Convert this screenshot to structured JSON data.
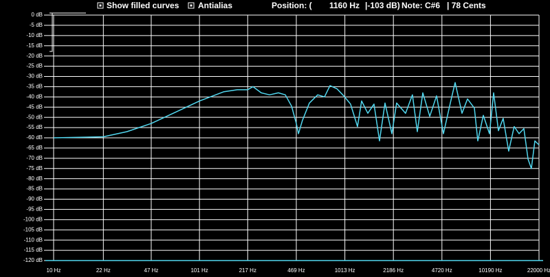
{
  "toolbar": {
    "filled_label": "Show filled curves",
    "antialias_label": "Antialias",
    "position_label": "Position: (",
    "position_hz": "1160 Hz",
    "position_db": "|-103 dB)",
    "note": "Note: C#6",
    "cents": "| 78 Cents"
  },
  "chart_data": {
    "type": "line",
    "xlog": true,
    "grid": true,
    "x": [
      10,
      22,
      32,
      47,
      69,
      101,
      148,
      184,
      217,
      236,
      269,
      307,
      353,
      394,
      435,
      469,
      485,
      517,
      577,
      658,
      733,
      800,
      892,
      995,
      1109,
      1237,
      1321,
      1458,
      1607,
      1754,
      1915,
      2134,
      2302,
      2652,
      2958,
      3195,
      3486,
      3890,
      4337,
      4834,
      5392,
      5821,
      6490,
      7080,
      7892,
      8337,
      9095,
      10035,
      10715,
      11560,
      12470,
      13610,
      14850,
      16030,
      17300,
      18490,
      19500,
      20600,
      22000
    ],
    "series": [
      {
        "color": "#52d8f0",
        "values": [
          -60,
          -59.5,
          -57,
          -53,
          -47.5,
          -42,
          -37.5,
          -36.5,
          -36.5,
          -35,
          -38,
          -39,
          -38,
          -39,
          -44.5,
          -53,
          -58,
          -51.5,
          -43,
          -39,
          -40,
          -34.5,
          -36,
          -39.5,
          -43.5,
          -54.5,
          -42,
          -48,
          -43.5,
          -61.5,
          -43,
          -58,
          -43,
          -48,
          -39,
          -57,
          -38,
          -49.5,
          -39.5,
          -58,
          -43,
          -33,
          -48,
          -41,
          -45.5,
          -61.5,
          -49,
          -58,
          -38,
          -56.5,
          -50.5,
          -66.5,
          -54.5,
          -58,
          -55.5,
          -70.5,
          -75,
          -61.5,
          -63.5
        ]
      }
    ],
    "xlim": [
      10,
      22000
    ],
    "xticks": [
      {
        "value": 10,
        "label": "10 Hz"
      },
      {
        "value": 22,
        "label": "22 Hz"
      },
      {
        "value": 47,
        "label": "47 Hz"
      },
      {
        "value": 101,
        "label": "101 Hz"
      },
      {
        "value": 217,
        "label": "217 Hz"
      },
      {
        "value": 469,
        "label": "469 Hz"
      },
      {
        "value": 1013,
        "label": "1013 Hz"
      },
      {
        "value": 2186,
        "label": "2186 Hz"
      },
      {
        "value": 4720,
        "label": "4720 Hz"
      },
      {
        "value": 10190,
        "label": "10190 Hz"
      },
      {
        "value": 22000,
        "label": "22000 Hz"
      }
    ],
    "ylim": [
      -120,
      0
    ],
    "yticks": [
      {
        "value": 0,
        "label": "0 dB"
      },
      {
        "value": -5,
        "label": "-5 dB"
      },
      {
        "value": -10,
        "label": "-10 dB"
      },
      {
        "value": -15,
        "label": "-15 dB"
      },
      {
        "value": -20,
        "label": "-20 dB"
      },
      {
        "value": -25,
        "label": "-25 dB"
      },
      {
        "value": -30,
        "label": "-30 dB"
      },
      {
        "value": -35,
        "label": "-35 dB"
      },
      {
        "value": -40,
        "label": "-40 dB"
      },
      {
        "value": -45,
        "label": "-45 dB"
      },
      {
        "value": -50,
        "label": "-50 dB"
      },
      {
        "value": -55,
        "label": "-55 dB"
      },
      {
        "value": -60,
        "label": "-60 dB"
      },
      {
        "value": -65,
        "label": "-65 dB"
      },
      {
        "value": -70,
        "label": "-70 dB"
      },
      {
        "value": -75,
        "label": "-75 dB"
      },
      {
        "value": -80,
        "label": "-80 dB"
      },
      {
        "value": -85,
        "label": "-85 dB"
      },
      {
        "value": -90,
        "label": "-90 dB"
      },
      {
        "value": -95,
        "label": "-95 dB"
      },
      {
        "value": -100,
        "label": "-100 dB"
      },
      {
        "value": -105,
        "label": "-105 dB"
      },
      {
        "value": -110,
        "label": "-110 dB"
      },
      {
        "value": -115,
        "label": "-115 dB"
      },
      {
        "value": -120,
        "label": "-120 dB"
      }
    ]
  }
}
